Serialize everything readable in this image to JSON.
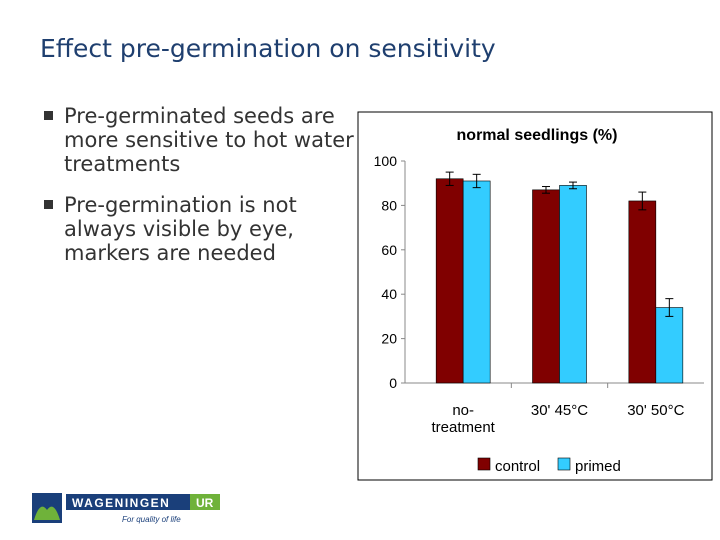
{
  "title": "Effect pre-germination on sensitivity",
  "bullets": [
    "Pre-germinated seeds are more sensitive to hot water treatments",
    "Pre-germination is not always visible by eye, markers are needed"
  ],
  "logo": {
    "name": "WAGENINGEN",
    "suffix": "UR",
    "tagline": "For quality of life"
  },
  "chart_data": {
    "type": "bar",
    "title": "normal seedlings (%)",
    "categories": [
      "no-treatment",
      "30' 45°C",
      "30' 50°C"
    ],
    "series": [
      {
        "name": "control",
        "color": "#800000",
        "values": [
          92,
          87,
          82
        ],
        "errors": [
          3,
          1.5,
          4
        ]
      },
      {
        "name": "primed",
        "color": "#33ccff",
        "values": [
          91,
          89,
          34
        ],
        "errors": [
          3,
          1.5,
          4
        ]
      }
    ],
    "ylim": [
      0,
      100
    ],
    "yticks": [
      0,
      20,
      40,
      60,
      80,
      100
    ],
    "grid": false,
    "legend": "bottom"
  }
}
